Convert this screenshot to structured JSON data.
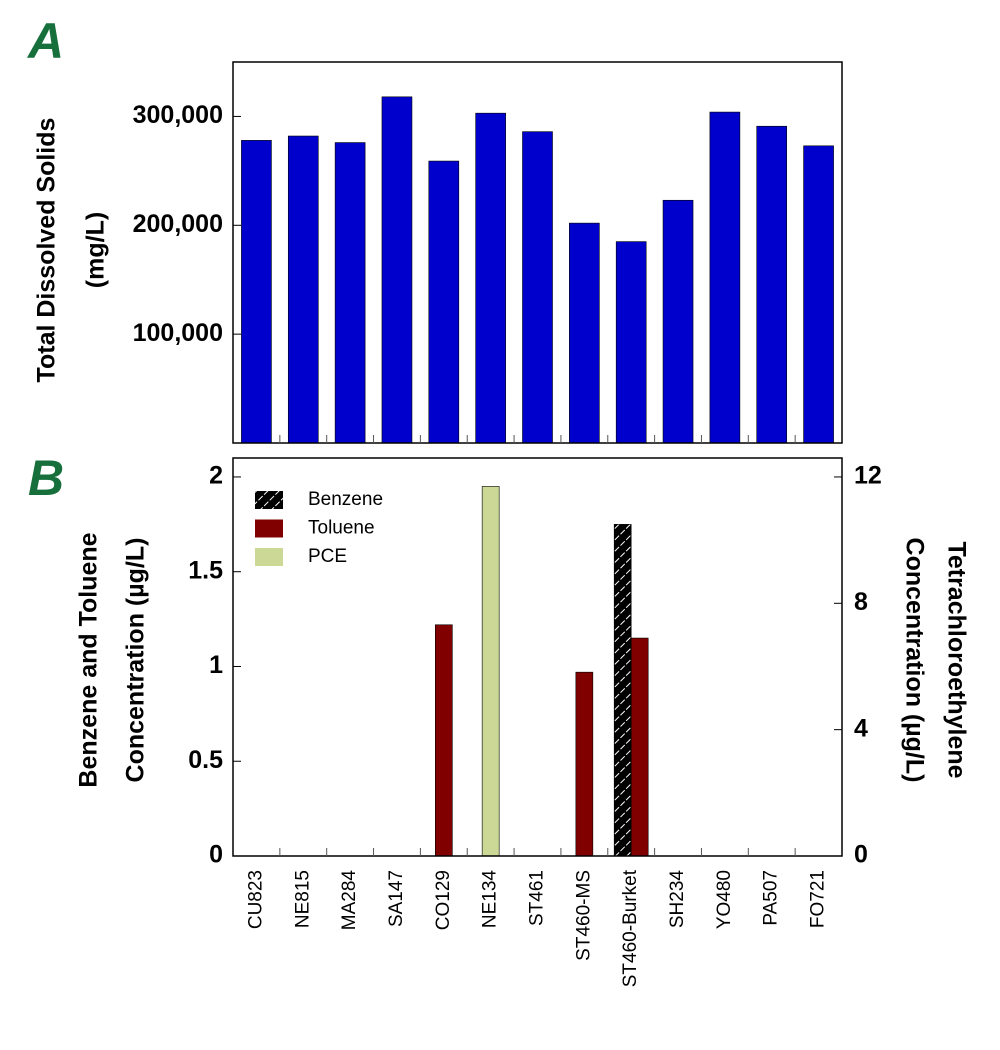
{
  "chart_data": [
    {
      "type": "bar",
      "label": "A",
      "ylabel": [
        "Total Dissolved Solids",
        "(mg/L)"
      ],
      "values": [
        278000,
        282000,
        276000,
        318000,
        259000,
        303000,
        286000,
        202000,
        185000,
        223000,
        304000,
        291000,
        273000
      ],
      "color": "#0000cc",
      "ylim": [
        0,
        350000
      ],
      "yticks": [
        {
          "value": 100000,
          "label": "100,000"
        },
        {
          "value": 200000,
          "label": "200,000"
        },
        {
          "value": 300000,
          "label": "300,000"
        }
      ]
    },
    {
      "type": "bar",
      "label": "B",
      "ylabel": [
        "Benzene and Toluene",
        "Concentration (µg/L)"
      ],
      "y2label": [
        "Tetrachloroethylene",
        "Concentration (µg/L)"
      ],
      "categories": [
        "CU823",
        "NE815",
        "MA284",
        "SA147",
        "CO129",
        "NE134",
        "ST461",
        "ST460-MS",
        "ST460-Burket",
        "SH234",
        "YO480",
        "PA507",
        "FO721"
      ],
      "series": [
        {
          "name": "Benzene",
          "color": "#0000cc",
          "pattern": "hatch",
          "values": [
            null,
            null,
            null,
            null,
            null,
            null,
            null,
            null,
            1.75,
            null,
            null,
            null,
            null
          ]
        },
        {
          "name": "Toluene",
          "color": "#800000",
          "values": [
            null,
            null,
            null,
            null,
            1.22,
            null,
            null,
            0.97,
            1.15,
            null,
            null,
            null,
            null
          ]
        },
        {
          "name": "PCE",
          "color": "#ccd996",
          "axis": "y2",
          "values": [
            null,
            null,
            null,
            null,
            null,
            11.7,
            null,
            null,
            null,
            null,
            null,
            null,
            null
          ]
        }
      ],
      "ylim": [
        0,
        2.1
      ],
      "yticks": [
        0,
        0.5,
        1,
        1.5,
        2
      ],
      "y2lim": [
        0,
        12.6
      ],
      "y2ticks": [
        0,
        4,
        8,
        12
      ],
      "legend": "upper-left"
    }
  ]
}
